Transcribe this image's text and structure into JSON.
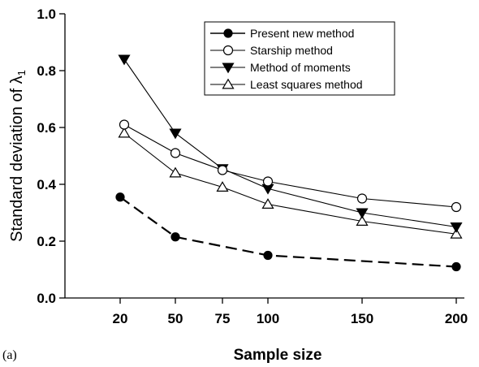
{
  "chart_data": {
    "type": "line",
    "panel_label": "(a)",
    "xlabel": "Sample size",
    "ylabel": "Standard deviation of λ",
    "ylabel_subscript": "1",
    "ylim": [
      0.0,
      1.0
    ],
    "yticks": [
      "0.0",
      "0.2",
      "0.4",
      "0.6",
      "0.8",
      "1.0"
    ],
    "categories": [
      "20",
      "50",
      "75",
      "100",
      "150",
      "200"
    ],
    "legend_position": "top-right",
    "series": [
      {
        "name": "Present new method",
        "marker": "filled-circle",
        "line": "dashed",
        "x": [
          20,
          50,
          100,
          200
        ],
        "values": [
          0.355,
          0.215,
          0.15,
          0.11
        ]
      },
      {
        "name": "Starship method",
        "marker": "open-circle",
        "line": "solid",
        "x": [
          20,
          50,
          75,
          100,
          150,
          200
        ],
        "values": [
          0.61,
          0.51,
          0.45,
          0.41,
          0.35,
          0.32
        ]
      },
      {
        "name": "Method of moments",
        "marker": "filled-triangle-down",
        "line": "solid",
        "x": [
          20,
          50,
          75,
          100,
          150,
          200
        ],
        "values": [
          0.84,
          0.58,
          0.455,
          0.385,
          0.3,
          0.25
        ]
      },
      {
        "name": "Least squares method",
        "marker": "open-triangle-up",
        "line": "solid",
        "x": [
          20,
          50,
          75,
          100,
          150,
          200
        ],
        "values": [
          0.58,
          0.44,
          0.39,
          0.33,
          0.27,
          0.225
        ]
      }
    ]
  }
}
